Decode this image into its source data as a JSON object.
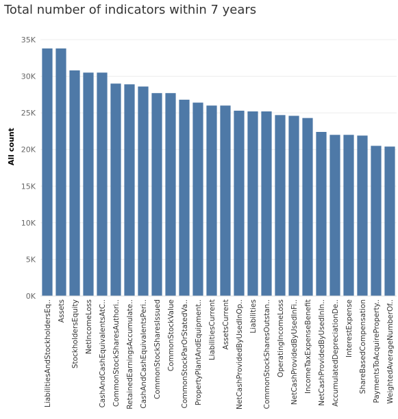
{
  "chart_data": {
    "type": "bar",
    "title": "Total number of indicators within 7 years",
    "xlabel": "",
    "ylabel": "All count",
    "ylim": [
      0,
      35000
    ],
    "yticks": [
      {
        "value": 0,
        "label": "0K"
      },
      {
        "value": 5000,
        "label": "5K"
      },
      {
        "value": 10000,
        "label": "10K"
      },
      {
        "value": 15000,
        "label": "15K"
      },
      {
        "value": 20000,
        "label": "20K"
      },
      {
        "value": 25000,
        "label": "25K"
      },
      {
        "value": 30000,
        "label": "30K"
      },
      {
        "value": 35000,
        "label": "35K"
      }
    ],
    "grid": true,
    "bar_color": "#4e79a7",
    "categories": [
      "LiabilitiesAndStockholdersEq..",
      "Assets",
      "StockholdersEquity",
      "NetIncomeLoss",
      "CashAndCashEquivalentsAtC..",
      "CommonStockSharesAuthori..",
      "RetainedEarningsAccumulate..",
      "CashAndCashEquivalentsPeri..",
      "CommonStockSharesIssued",
      "CommonStockValue",
      "CommonStockParOrStatedVa..",
      "PropertyPlantAndEquipment..",
      "LiabilitiesCurrent",
      "AssetsCurrent",
      "NetCashProvidedByUsedInOp..",
      "Liabilities",
      "CommonStockSharesOutstan..",
      "OperatingIncomeLoss",
      "NetCashProvidedByUsedInFi..",
      "IncomeTaxExpenseBenefit",
      "NetCashProvidedByUsedInIn..",
      "AccumulatedDepreciationDe..",
      "InterestExpense",
      "ShareBasedCompensation",
      "PaymentsToAcquireProperty..",
      "WeightedAverageNumberOf.."
    ],
    "values": [
      33800,
      33800,
      30800,
      30500,
      30500,
      29000,
      28900,
      28600,
      27700,
      27700,
      26800,
      26400,
      26000,
      26000,
      25300,
      25200,
      25200,
      24700,
      24600,
      24300,
      22400,
      22000,
      22000,
      21900,
      20500,
      20400
    ]
  }
}
